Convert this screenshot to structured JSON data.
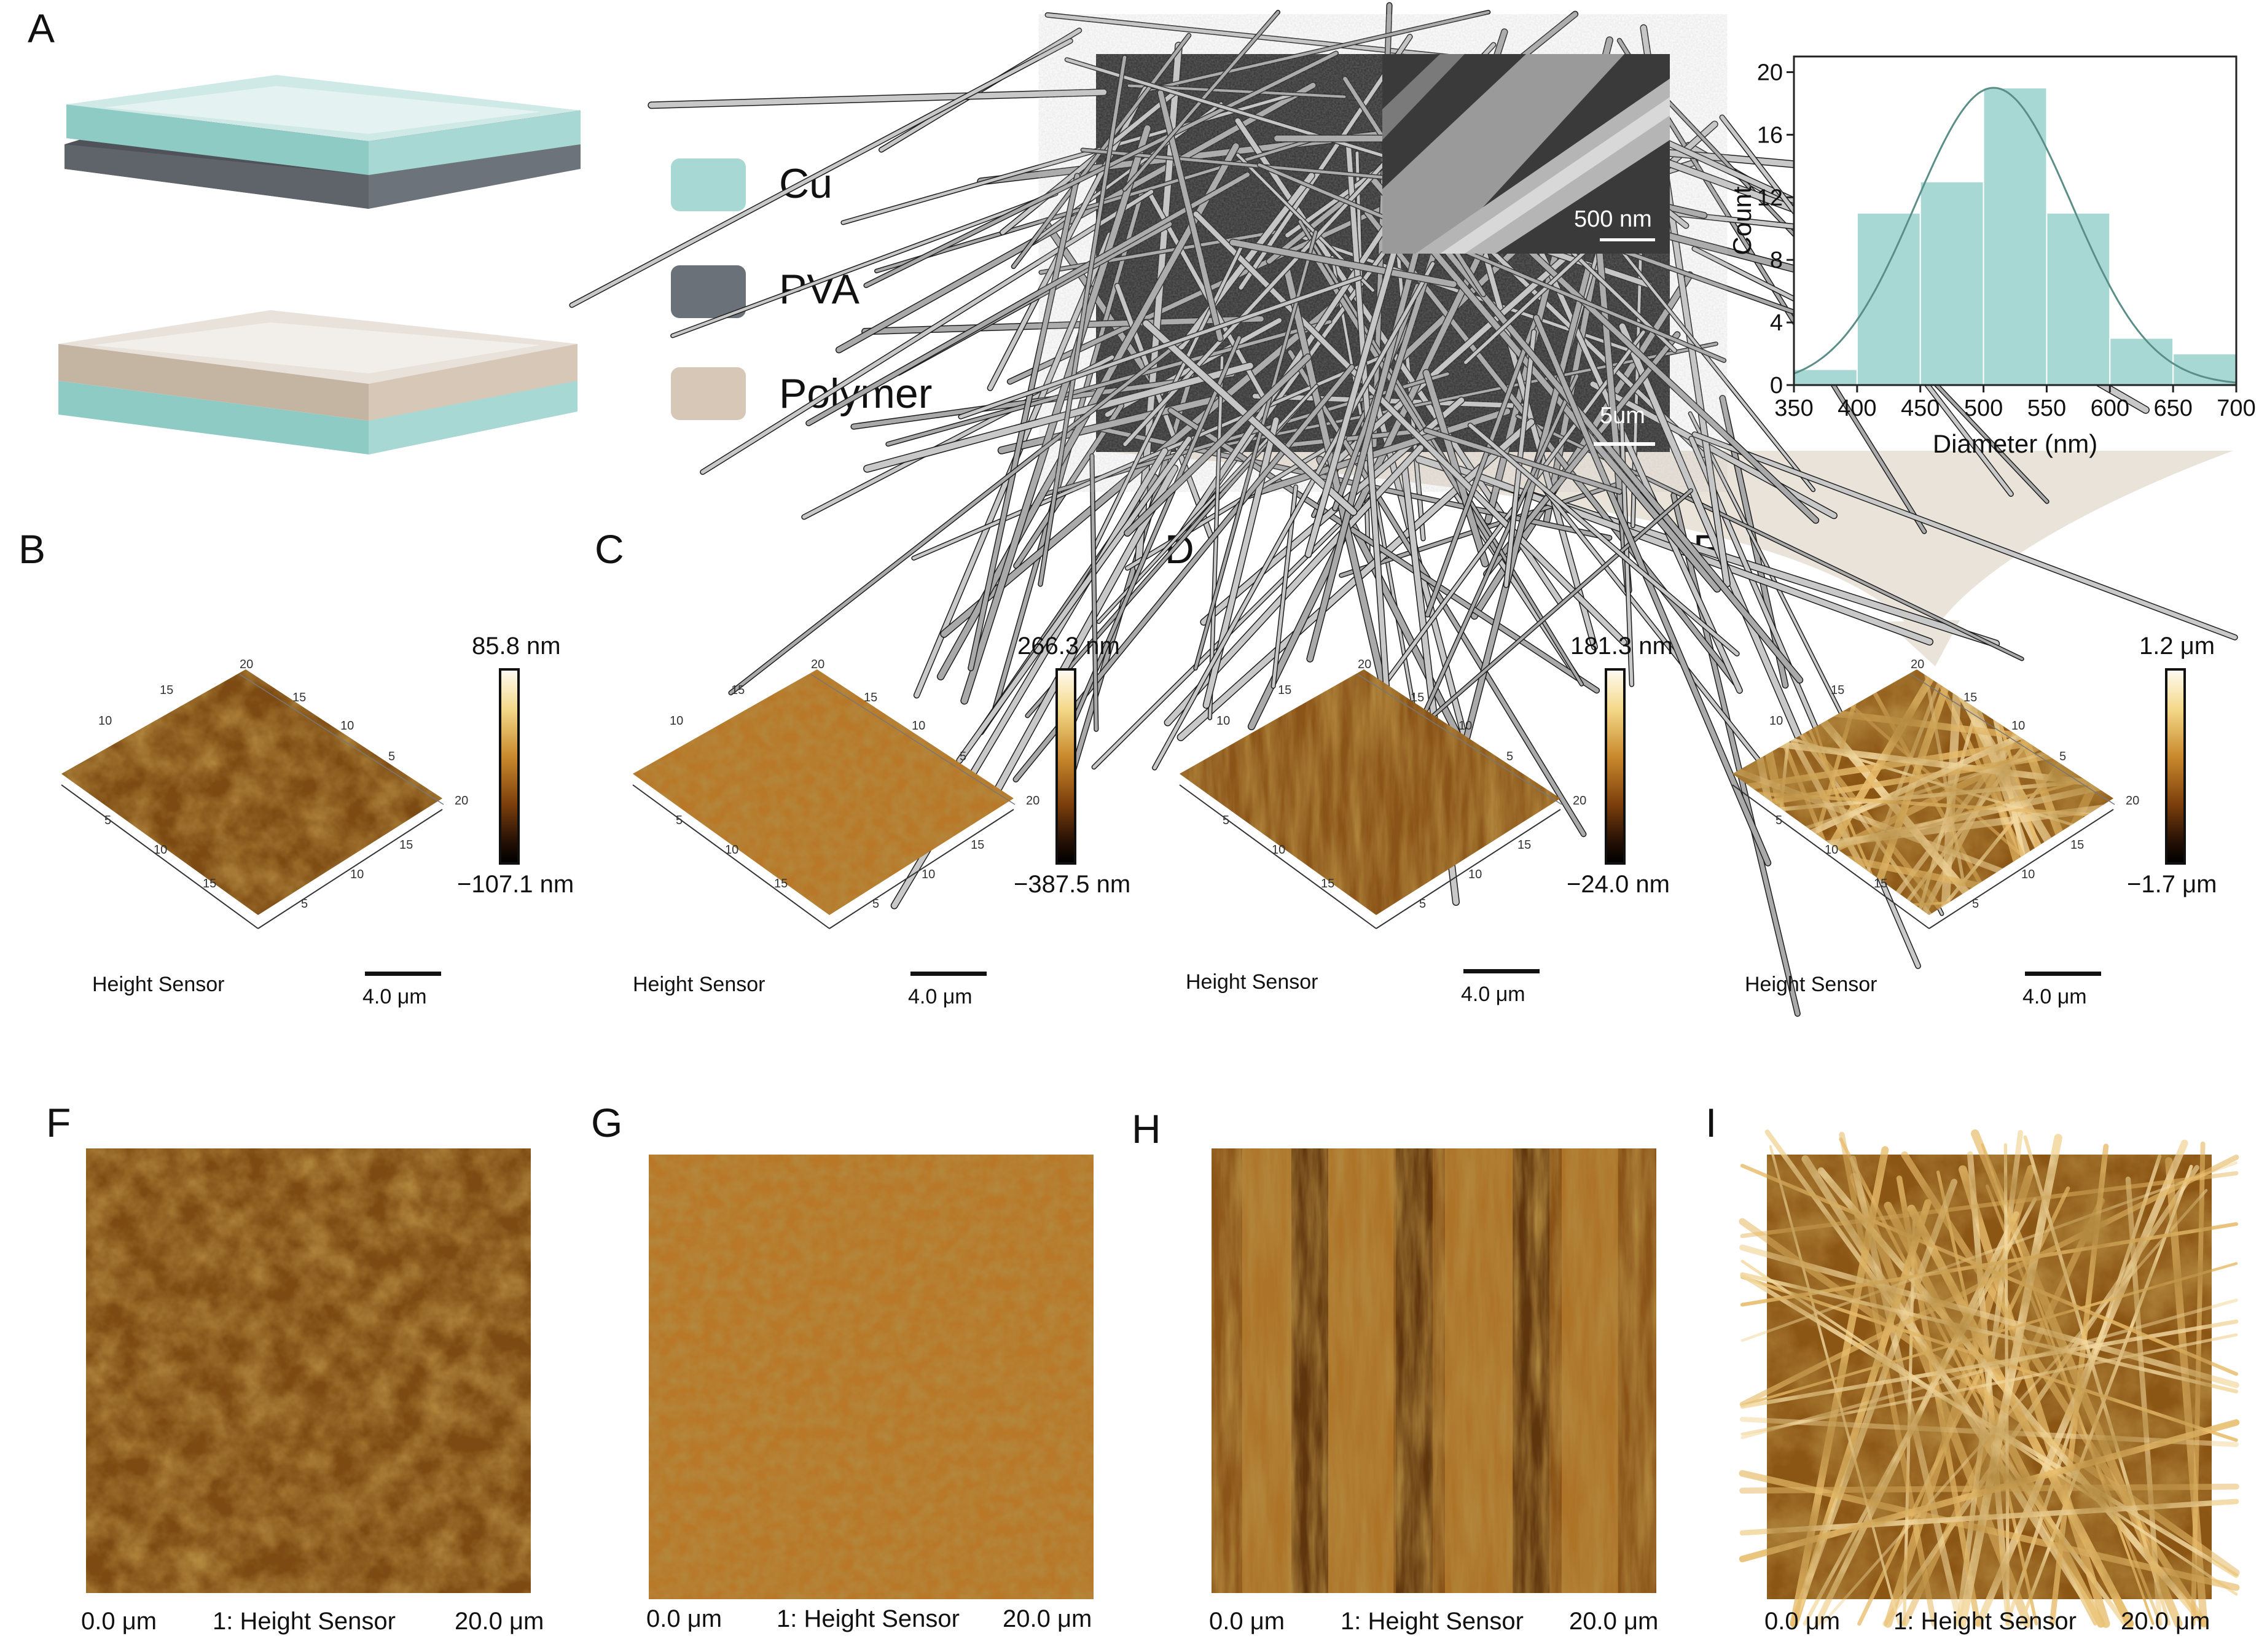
{
  "panels": {
    "A": "A",
    "B": "B",
    "C": "C",
    "D": "D",
    "E": "E",
    "F": "F",
    "G": "G",
    "H": "H",
    "I": "I"
  },
  "legend": {
    "items": [
      {
        "label": "Cu",
        "color": "#a8d8d4"
      },
      {
        "label": "PVA",
        "color": "#6b7178"
      },
      {
        "label": "Polymer",
        "color": "#d6c7b6"
      }
    ]
  },
  "sem": {
    "inset_scale": "500 nm",
    "main_scale": "5um"
  },
  "chart_data": {
    "type": "bar",
    "categories": [
      "350-400",
      "400-450",
      "450-500",
      "500-550",
      "550-600",
      "600-650",
      "650-700"
    ],
    "values": [
      1,
      11,
      13,
      19,
      11,
      3,
      2
    ],
    "xlabel": "Diameter (nm)",
    "ylabel": "Count",
    "xticks": [
      "350",
      "400",
      "450",
      "500",
      "550",
      "600",
      "650",
      "700"
    ],
    "yticks": [
      "0",
      "4",
      "8",
      "12",
      "16",
      "20"
    ],
    "ylim": [
      0,
      21
    ],
    "xlim": [
      350,
      700
    ],
    "fit": "gaussian",
    "fit_params": {
      "mean": 508,
      "sigma": 62,
      "peak": 19
    },
    "bar_color": "#a8d8d4",
    "fit_color": "#5a8f88"
  },
  "afm3d": [
    {
      "id": "B",
      "max": "85.8 nm",
      "min": "−107.1 nm",
      "sensor": "Height Sensor",
      "scale": "4.0 μm"
    },
    {
      "id": "C",
      "max": "266.3 nm",
      "min": "−387.5 nm",
      "sensor": "Height Sensor",
      "scale": "4.0 μm"
    },
    {
      "id": "D",
      "max": "181.3 nm",
      "min": "−24.0 nm",
      "sensor": "Height Sensor",
      "scale": "4.0 μm"
    },
    {
      "id": "E",
      "max": "1.2 μm",
      "min": "−1.7 μm",
      "sensor": "Height Sensor",
      "scale": "4.0 μm"
    }
  ],
  "axis_ticks": {
    "t5": "5",
    "t10": "10",
    "t15": "15",
    "t20": "20"
  },
  "afm2d": [
    {
      "id": "F",
      "left": "0.0 μm",
      "mid": "1: Height Sensor",
      "right": "20.0 μm"
    },
    {
      "id": "G",
      "left": "0.0 μm",
      "mid": "1: Height Sensor",
      "right": "20.0 μm"
    },
    {
      "id": "H",
      "left": "0.0 μm",
      "mid": "1: Height Sensor",
      "right": "20.0 μm"
    },
    {
      "id": "I",
      "left": "0.0 μm",
      "mid": "1: Height Sensor",
      "right": "20.0 μm"
    }
  ]
}
